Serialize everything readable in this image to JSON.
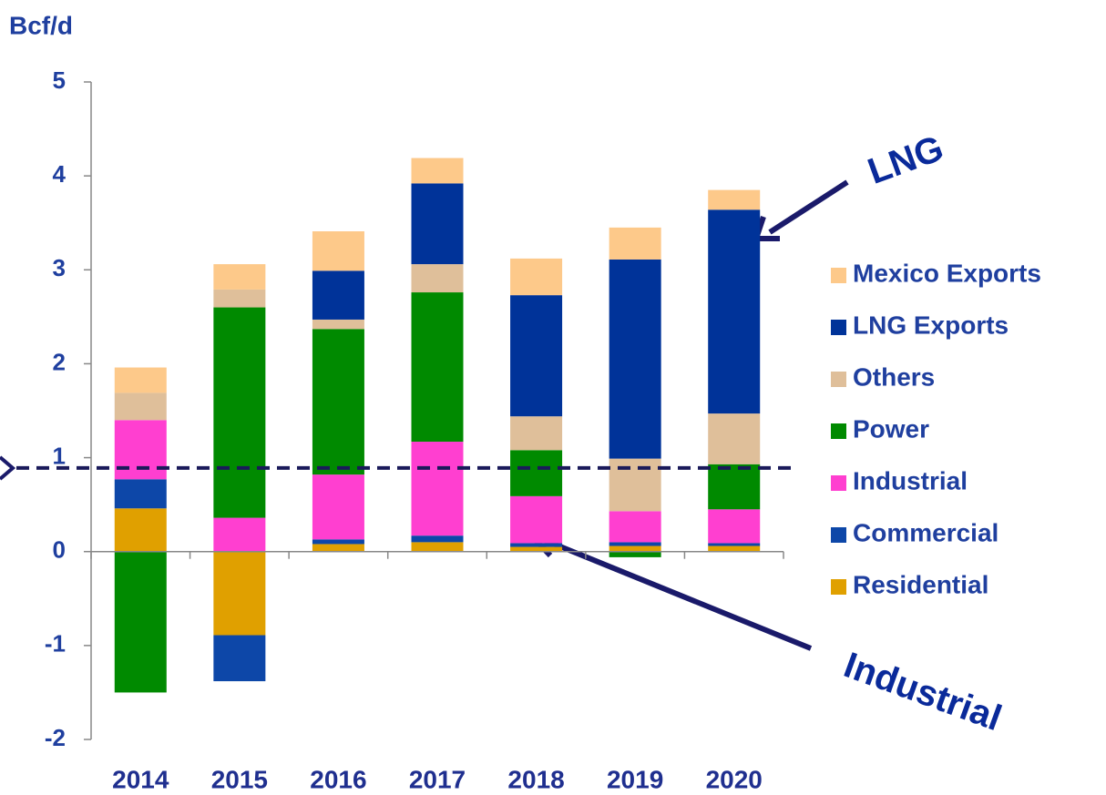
{
  "chart_data": {
    "type": "stacked_bar",
    "y_label": "Bcf/d",
    "categories": [
      "2014",
      "2015",
      "2016",
      "2017",
      "2018",
      "2019",
      "2020"
    ],
    "series": [
      {
        "name": "Residential",
        "color": "#e0a000",
        "values": [
          0.46,
          -0.89,
          0.08,
          0.1,
          0.05,
          0.06,
          0.06
        ]
      },
      {
        "name": "Commercial",
        "color": "#0d47a8",
        "values": [
          0.31,
          -0.49,
          0.05,
          0.07,
          0.04,
          0.04,
          0.03
        ]
      },
      {
        "name": "Industrial",
        "color": "#ff3fd0",
        "values": [
          0.63,
          0.36,
          0.69,
          1.0,
          0.5,
          0.33,
          0.36
        ]
      },
      {
        "name": "Power",
        "color": "#008a00",
        "values": [
          -1.5,
          2.24,
          1.55,
          1.59,
          0.49,
          -0.06,
          0.48
        ]
      },
      {
        "name": "Others",
        "color": "#dfbf9a",
        "values": [
          0.29,
          0.19,
          0.1,
          0.3,
          0.36,
          0.56,
          0.54
        ]
      },
      {
        "name": "LNG Exports",
        "color": "#003399",
        "values": [
          0,
          0,
          0.52,
          0.86,
          1.29,
          2.12,
          2.17
        ]
      },
      {
        "name": "Mexico Exports",
        "color": "#fdc98a",
        "values": [
          0.27,
          0.27,
          0.42,
          0.27,
          0.39,
          0.34,
          0.21
        ]
      }
    ],
    "ylim": [
      -2,
      5
    ],
    "yticks": [
      -2,
      -1,
      0,
      1,
      2,
      3,
      4,
      5
    ],
    "reference_line": 0.89,
    "annotations": [
      "LNG",
      "Industrial"
    ]
  }
}
